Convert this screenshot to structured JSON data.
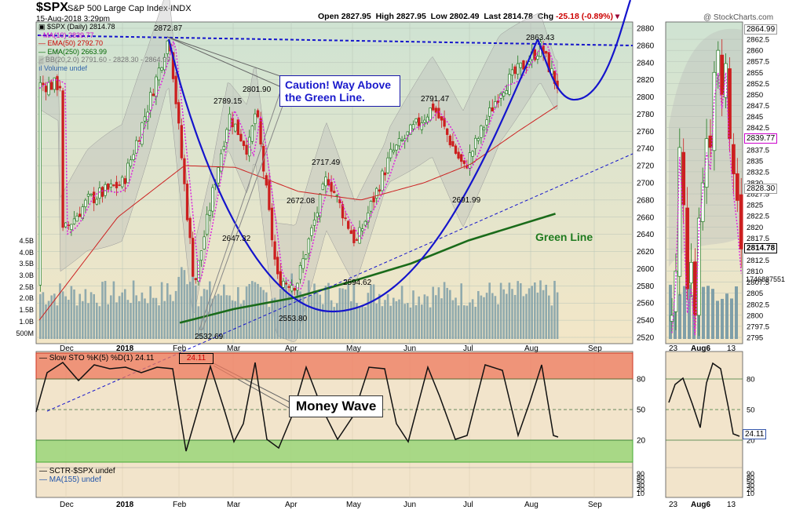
{
  "header": {
    "symbol": "$SPX",
    "name": "S&P 500 Large Cap Index",
    "exchange": "INDX",
    "date": "15-Aug-2018 3:29pm",
    "open_label": "Open",
    "open": "2827.95",
    "high_label": "High",
    "high": "2827.95",
    "low_label": "Low",
    "low": "2802.49",
    "last_label": "Last",
    "last": "2814.78",
    "chg_label": "Chg",
    "chg": "-25.18 (-0.89%)",
    "watermark": "@ StockCharts.com"
  },
  "legend": [
    {
      "text": "$SPX (Daily) 2814.78",
      "color": "#000000"
    },
    {
      "text": "MA(10) 2839.77",
      "color": "#cc00cc"
    },
    {
      "text": "EMA(50) 2792.70",
      "color": "#cc0000"
    },
    {
      "text": "EMA(250) 2663.99",
      "color": "#006600"
    },
    {
      "text": "BB(20,2.0) 2791.60 - 2828.30 - 2864.99",
      "color": "#888888"
    },
    {
      "text": "Volume undef",
      "color": "#3366aa"
    }
  ],
  "annotations": {
    "caution": "Caution! Way Above the Green Line.",
    "money_wave": "Money Wave",
    "green_line": "Green Line"
  },
  "price_labels": {
    "p1": "2872.87",
    "p2": "2863.43",
    "p3": "2801.90",
    "p4": "2789.15",
    "p5": "2791.47",
    "p6": "2717.49",
    "p7": "2672.08",
    "p8": "2691.99",
    "p9": "2647.32",
    "p10": "2594.62",
    "p11": "2553.80",
    "p12": "2532.69"
  },
  "right_badges": {
    "last": "2814.78",
    "ma10": "2839.77",
    "bb_mid": "2828.30",
    "bb_up": "2864.99",
    "volume": "1746887551",
    "sto": "24.11"
  },
  "sto_panel": {
    "title": "Slow STO %K(5) %D(1) 24.11",
    "value_box": "24.11",
    "levels": [
      80,
      50,
      20
    ]
  },
  "sctr_panel": {
    "line1": "SCTR-$SPX undef",
    "line2": "MA(155) undef"
  },
  "colors": {
    "price_up": "#1f7a1f",
    "price_down": "#cc1f1f",
    "ma10": "#dd22dd",
    "ema50": "#cc2222",
    "ema250": "#1a6b1a",
    "blue": "#1414cc",
    "bb_fill": "#b8b8b8",
    "volume": "#7f9fa8"
  },
  "chart_data": {
    "type": "line",
    "title": "$SPX S&P 500 Large Cap Index",
    "ylim": [
      2520,
      2890
    ],
    "y_ticks": [
      2520,
      2540,
      2560,
      2580,
      2600,
      2620,
      2640,
      2660,
      2680,
      2700,
      2720,
      2740,
      2760,
      2780,
      2800,
      2820,
      2840,
      2860,
      2880
    ],
    "volume_ticks": [
      "500M",
      "1.0B",
      "1.5B",
      "2.0B",
      "2.5B",
      "3.0B",
      "3.5B",
      "4.0B",
      "4.5B"
    ],
    "x_ticks": [
      "Dec",
      "2018",
      "Feb",
      "Mar",
      "Apr",
      "May",
      "Jun",
      "Jul",
      "Aug",
      "Sep"
    ],
    "detail_y_ticks": [
      2795,
      2797.5,
      2800,
      2802.5,
      2805,
      2807.5,
      2810,
      2812.5,
      2815,
      2817.5,
      2820,
      2822.5,
      2825,
      2827.5,
      2830,
      2832.5,
      2835,
      2837.5,
      2840,
      2842.5,
      2845,
      2847.5,
      2850,
      2852.5,
      2855,
      2857.5,
      2860,
      2862.5
    ],
    "detail_x_ticks": [
      "23",
      "Aug6",
      "13"
    ],
    "sto_ticks": [
      80,
      50,
      20
    ],
    "sctr_ticks": [
      90,
      80,
      50,
      30,
      20,
      10
    ],
    "series": [
      {
        "name": "$SPX (Daily)",
        "x": [
          "Nov-20",
          "Dec-1",
          "Dec-15",
          "Jan-2",
          "Jan-15",
          "Jan-26",
          "Feb-8",
          "Feb-20",
          "Feb-26",
          "Mar-8",
          "Mar-12",
          "Mar-23",
          "Apr-2",
          "Apr-18",
          "May-3",
          "May-21",
          "Jun-12",
          "Jun-28",
          "Jul-17",
          "Aug-7",
          "Aug-15"
        ],
        "values": [
          2582,
          2640,
          2680,
          2700,
          2790,
          2872,
          2581,
          2716,
          2779,
          2738,
          2786,
          2588,
          2582,
          2708,
          2629,
          2733,
          2789,
          2716,
          2809,
          2858,
          2814
        ]
      },
      {
        "name": "EMA(250)",
        "x": [
          "Feb-1",
          "Mar-1",
          "Apr-1",
          "May-1",
          "Jun-1",
          "Jul-1",
          "Aug-15"
        ],
        "values": [
          2537,
          2553,
          2566,
          2585,
          2606,
          2633,
          2664
        ]
      }
    ],
    "annotated_prices": [
      2872.87,
      2863.43,
      2801.9,
      2789.15,
      2791.47,
      2717.49,
      2672.08,
      2691.99,
      2647.32,
      2594.62,
      2553.8,
      2532.69
    ]
  }
}
